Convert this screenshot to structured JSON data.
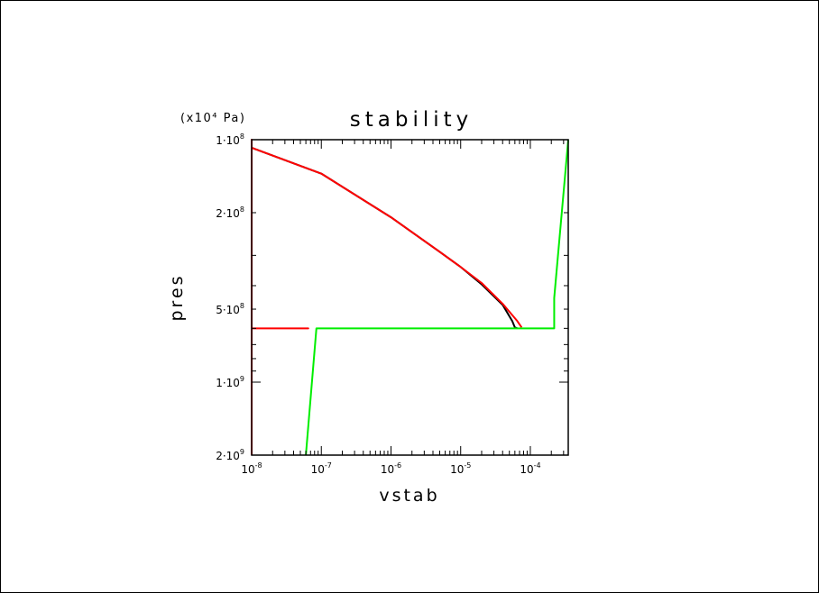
{
  "chart_data": {
    "type": "line",
    "title": "stability",
    "unit_label": "(x10⁴ Pa)",
    "xlabel": "vstab",
    "ylabel": "pres",
    "x_scale": "log",
    "y_scale": "log",
    "y_inverted": true,
    "xlim": [
      1e-08,
      0.00035
    ],
    "ylim": [
      100000000,
      2000000000
    ],
    "x_ticks": [
      {
        "value": 1e-08,
        "label": "10⁻⁸"
      },
      {
        "value": 1e-07,
        "label": "10⁻⁷"
      },
      {
        "value": 1e-06,
        "label": "10⁻⁶"
      },
      {
        "value": 1e-05,
        "label": "10⁻⁵"
      },
      {
        "value": 0.0001,
        "label": "10⁻⁴"
      }
    ],
    "y_ticks": [
      {
        "value": 100000000,
        "label": "1·10⁸"
      },
      {
        "value": 200000000,
        "label": "2·10⁸"
      },
      {
        "value": 500000000,
        "label": "5·10⁸"
      },
      {
        "value": 1000000000,
        "label": "1·10⁹"
      },
      {
        "value": 2000000000,
        "label": "2·10⁹"
      }
    ],
    "grid": false,
    "series": [
      {
        "color": "#000000",
        "points": [
          [
            1e-08,
            108000000
          ],
          [
            1e-07,
            138000000
          ],
          [
            1e-06,
            209000000
          ],
          [
            5e-06,
            290000000
          ],
          [
            1e-05,
            335000000
          ],
          [
            2e-05,
            395000000
          ],
          [
            4e-05,
            480000000
          ],
          [
            5.5e-05,
            560000000
          ],
          [
            6e-05,
            595000000
          ],
          [
            6.5e-05,
            600000000
          ]
        ]
      },
      {
        "color": "#ff0000",
        "points": [
          [
            7.5e-05,
            595000000
          ],
          [
            6.5e-05,
            560000000
          ],
          [
            4e-05,
            475000000
          ],
          [
            2e-05,
            390000000
          ],
          [
            1e-05,
            335000000
          ],
          [
            5e-06,
            290000000
          ],
          [
            1e-06,
            209000000
          ],
          [
            1e-07,
            138000000
          ],
          [
            1e-08,
            108000000
          ],
          [
            1e-08,
            100000000
          ],
          [
            1e-08,
            600000000
          ],
          [
            6.5e-08,
            600000000
          ],
          [
            1e-08,
            600000000
          ],
          [
            1e-08,
            2000000000
          ]
        ]
      },
      {
        "color": "#00ee00",
        "points": [
          [
            6e-08,
            2000000000
          ],
          [
            8.5e-08,
            600000000
          ],
          [
            6.5e-05,
            600000000
          ],
          [
            0.00022,
            600000000
          ],
          [
            0.00022,
            450000000
          ],
          [
            0.00035,
            100000000
          ]
        ]
      }
    ]
  }
}
